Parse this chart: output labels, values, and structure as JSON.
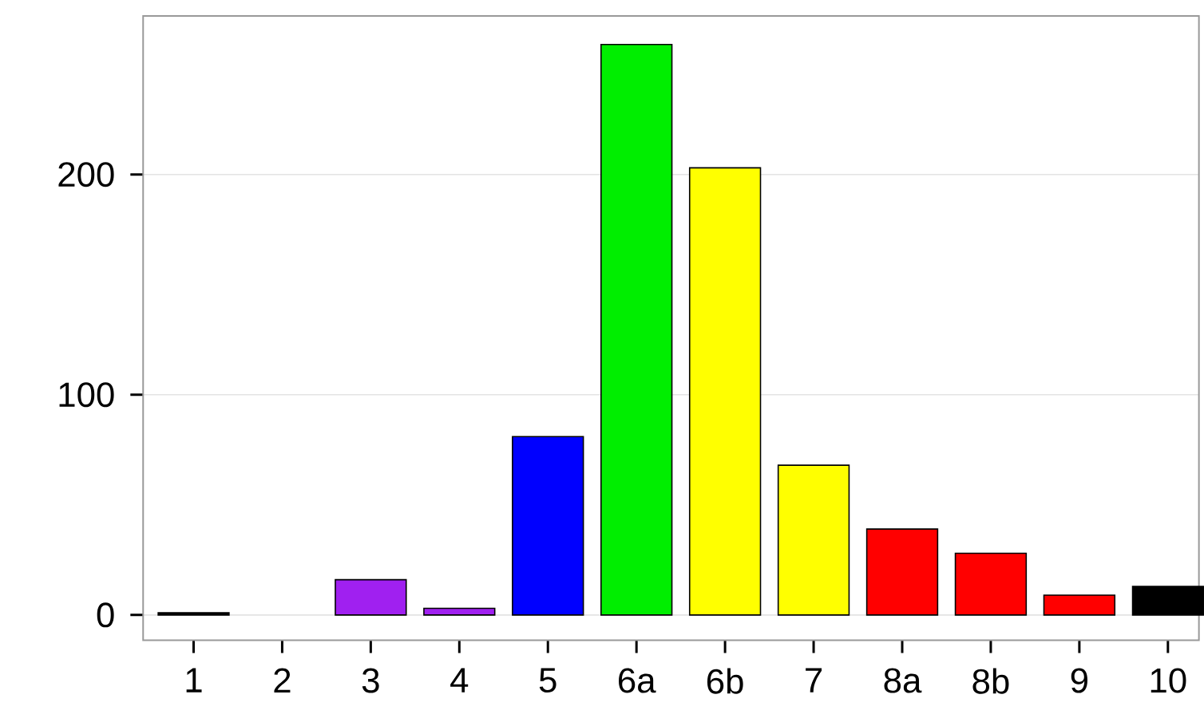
{
  "chart_data": {
    "type": "bar",
    "categories": [
      "1",
      "2",
      "3",
      "4",
      "5",
      "6a",
      "6b",
      "7",
      "8a",
      "8b",
      "9",
      "10"
    ],
    "values": [
      1,
      null,
      16,
      3,
      81,
      259,
      203,
      68,
      39,
      28,
      9,
      13
    ],
    "colors": [
      "#000000",
      "#a020f0",
      "#a020f0",
      "#a020f0",
      "#0000ff",
      "#00ee00",
      "#ffff00",
      "#ffff00",
      "#ff0000",
      "#ff0000",
      "#ff0000",
      "#000000"
    ],
    "ylim": [
      -11.5,
      272
    ],
    "yticks": [
      0,
      100,
      200
    ],
    "grid": "y"
  }
}
